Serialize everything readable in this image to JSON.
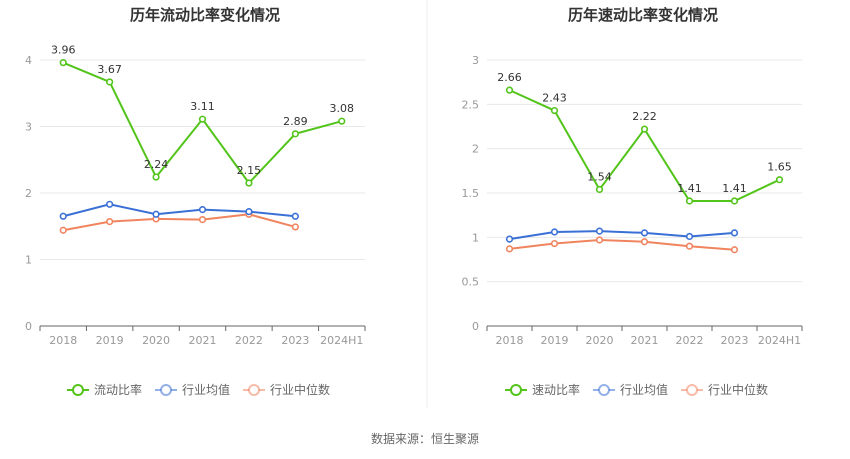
{
  "chart_data": [
    {
      "type": "line",
      "title": "历年流动比率变化情况",
      "categories": [
        "2018",
        "2019",
        "2020",
        "2021",
        "2022",
        "2023",
        "2024H1"
      ],
      "ylim": [
        0,
        4
      ],
      "yticks": [
        "0",
        "1",
        "2",
        "3",
        "4"
      ],
      "legend_position": "bottom-center",
      "grid": true,
      "series": [
        {
          "name": "流动比率",
          "color": "#52c41a",
          "values": [
            3.96,
            3.67,
            2.24,
            3.11,
            2.15,
            2.89,
            3.08
          ],
          "labels": [
            "3.96",
            "3.67",
            "2.24",
            "3.11",
            "2.15",
            "2.89",
            "3.08"
          ]
        },
        {
          "name": "行业均值",
          "color": "#3a70d6",
          "values": [
            1.65,
            1.83,
            1.68,
            1.75,
            1.72,
            1.65,
            null
          ]
        },
        {
          "name": "行业中位数",
          "color": "#f0845e",
          "values": [
            1.44,
            1.57,
            1.61,
            1.6,
            1.68,
            1.49,
            null
          ]
        }
      ]
    },
    {
      "type": "line",
      "title": "历年速动比率变化情况",
      "categories": [
        "2018",
        "2019",
        "2020",
        "2021",
        "2022",
        "2023",
        "2024H1"
      ],
      "ylim": [
        0,
        3
      ],
      "yticks": [
        "0",
        "0.5",
        "1",
        "1.5",
        "2",
        "2.5",
        "3"
      ],
      "legend_position": "bottom-center",
      "grid": true,
      "series": [
        {
          "name": "速动比率",
          "color": "#52c41a",
          "values": [
            2.66,
            2.43,
            1.54,
            2.22,
            1.41,
            1.41,
            1.65
          ],
          "labels": [
            "2.66",
            "2.43",
            "1.54",
            "2.22",
            "1.41",
            "1.41",
            "1.65"
          ]
        },
        {
          "name": "行业均值",
          "color": "#3a70d6",
          "values": [
            0.98,
            1.06,
            1.07,
            1.05,
            1.01,
            1.05,
            null
          ]
        },
        {
          "name": "行业中位数",
          "color": "#f0845e",
          "values": [
            0.87,
            0.93,
            0.97,
            0.95,
            0.9,
            0.86,
            null
          ]
        }
      ]
    }
  ],
  "source_text": "数据来源：恒生聚源"
}
